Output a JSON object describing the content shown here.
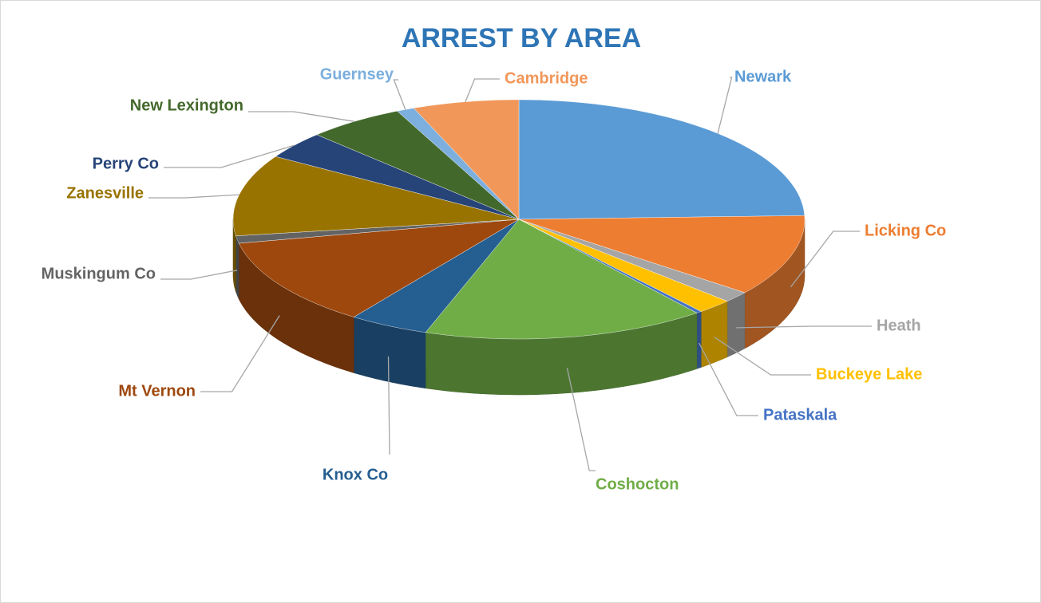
{
  "chart_data": {
    "type": "pie",
    "title": "ARREST BY AREA",
    "categories": [
      "Newark",
      "Licking Co",
      "Heath",
      "Buckeye Lake",
      "Pataskala",
      "Coshocton",
      "Knox Co",
      "Mt Vernon",
      "Muskingum Co",
      "Zanesville",
      "Perry Co",
      "New Lexington",
      "Guernsey",
      "Cambridge"
    ],
    "values": [
      24.5,
      11,
      1.5,
      2,
      0.3,
      16,
      4.5,
      12,
      1,
      11,
      3.7,
      5.5,
      1,
      6
    ],
    "colors": [
      "#5b9bd5",
      "#ed7d31",
      "#a5a5a5",
      "#ffc000",
      "#4472c4",
      "#70ad47",
      "#255e91",
      "#9e480e",
      "#636363",
      "#997300",
      "#264478",
      "#43682b",
      "#7cafdd",
      "#f1975a"
    ]
  }
}
